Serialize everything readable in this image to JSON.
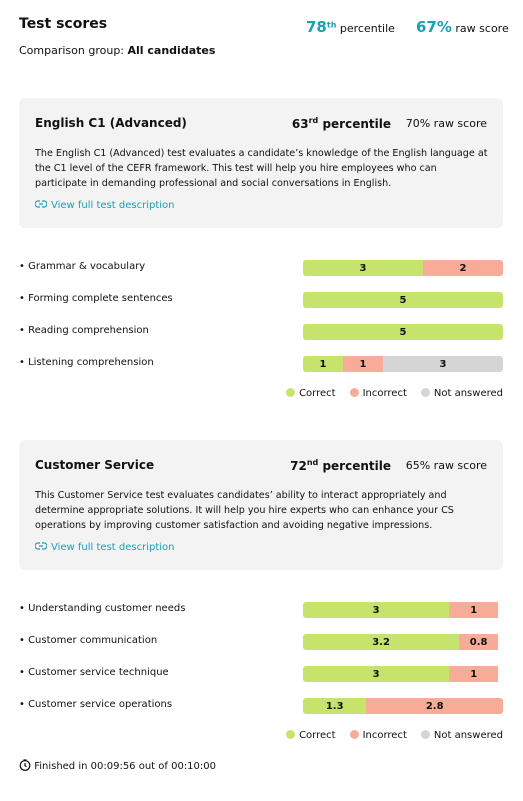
{
  "header": {
    "title": "Test scores",
    "percentile": {
      "number": "78",
      "suffix": "th",
      "label": "percentile"
    },
    "raw_score": {
      "value": "67%",
      "label": "raw score"
    },
    "comparison": {
      "label": "Comparison group:",
      "value": "All candidates"
    }
  },
  "legend": [
    {
      "name": "Correct",
      "color": "#c6e46c"
    },
    {
      "name": "Incorrect",
      "color": "#f7ab98"
    },
    {
      "name": "Not answered",
      "color": "#d5d5d5"
    }
  ],
  "tests": [
    {
      "name": "English C1 (Advanced)",
      "percentile": {
        "number": "63",
        "suffix": "rd",
        "label": "percentile"
      },
      "raw_score": "70% raw score",
      "description": "The English C1 (Advanced) test evaluates a candidate’s knowledge of the English language at the C1 level of the CEFR framework. This test will help you hire employees who can participate in demanding professional and social conversations in English.",
      "link": "View full test description",
      "skills": [
        {
          "name": "Grammar & vocabulary",
          "values": [
            3,
            2,
            null
          ]
        },
        {
          "name": "Forming complete sentences",
          "values": [
            5,
            null,
            null
          ]
        },
        {
          "name": "Reading comprehension",
          "values": [
            5,
            null,
            null
          ]
        },
        {
          "name": "Listening comprehension",
          "values": [
            1,
            1,
            3
          ]
        }
      ]
    },
    {
      "name": "Customer Service",
      "percentile": {
        "number": "72",
        "suffix": "nd",
        "label": "percentile"
      },
      "raw_score": "65% raw score",
      "description": "This Customer Service test evaluates candidates’ ability to interact appropriately and determine appropriate solutions. It will help you hire experts who can enhance your CS operations by improving customer satisfaction and avoiding negative impressions.",
      "link": "View full test description",
      "skills": [
        {
          "name": "Understanding customer needs",
          "values": [
            3,
            1,
            null
          ]
        },
        {
          "name": "Customer communication",
          "values": [
            3.2,
            0.8,
            null
          ]
        },
        {
          "name": "Customer service technique",
          "values": [
            3,
            1,
            null
          ]
        },
        {
          "name": "Customer service operations",
          "values": [
            1.3,
            2.8,
            null
          ]
        }
      ]
    }
  ],
  "footer": "Finished in 00:09:56 out of 00:10:00"
}
